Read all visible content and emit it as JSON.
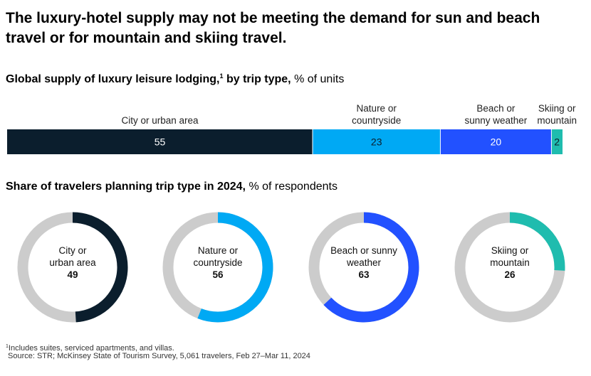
{
  "title": {
    "line1": "The luxury-hotel supply may not be meeting the demand for sun and beach",
    "line2": "travel or for mountain and skiing travel."
  },
  "supply_section": {
    "heading_bold": "Global supply of luxury leisure lodging,",
    "heading_sup": "1",
    "heading_bold2": " by trip type,",
    "heading_unit": " % of units"
  },
  "share_section": {
    "heading_bold": "Share of travelers planning trip type in 2024,",
    "heading_unit": " % of respondents"
  },
  "footnotes": {
    "note_sup": "1",
    "note": "Includes suites, serviced apartments, and villas.",
    "source": "Source: STR; McKinsey State of Tourism Survey, 5,061 travelers, Feb 27–Mar 11, 2024"
  },
  "colors": {
    "city": "#0b1e2d",
    "nature": "#00a9f4",
    "beach": "#2251ff",
    "skiing": "#1fbcae",
    "remainder": "#cccccc"
  },
  "chart_data": [
    {
      "type": "bar",
      "orientation": "horizontal-stacked",
      "title": "Global supply of luxury leisure lodging, by trip type",
      "unit": "% of units",
      "categories": [
        [
          "City or urban area"
        ],
        [
          "Nature or",
          "countryside"
        ],
        [
          "Beach or",
          "sunny weather"
        ],
        [
          "Skiing or",
          "mountain"
        ]
      ],
      "values": [
        55,
        23,
        20,
        2
      ],
      "series_colors": [
        "#0b1e2d",
        "#00a9f4",
        "#2251ff",
        "#1fbcae"
      ],
      "label_colors": [
        "#ffffff",
        "#0b1e2d",
        "#ffffff",
        "#0b1e2d"
      ],
      "xlim": [
        0,
        100
      ]
    },
    {
      "type": "pie",
      "variant": "donut",
      "title": "Share of travelers planning trip type in 2024",
      "unit": "% of respondents",
      "items": [
        {
          "label": [
            "City or",
            "urban area"
          ],
          "value": 49,
          "color": "#0b1e2d"
        },
        {
          "label": [
            "Nature or",
            "countryside"
          ],
          "value": 56,
          "color": "#00a9f4"
        },
        {
          "label": [
            "Beach or sunny",
            "weather"
          ],
          "value": 63,
          "color": "#2251ff"
        },
        {
          "label": [
            "Skiing or",
            "mountain"
          ],
          "value": 26,
          "color": "#1fbcae"
        }
      ],
      "max": 100
    }
  ]
}
